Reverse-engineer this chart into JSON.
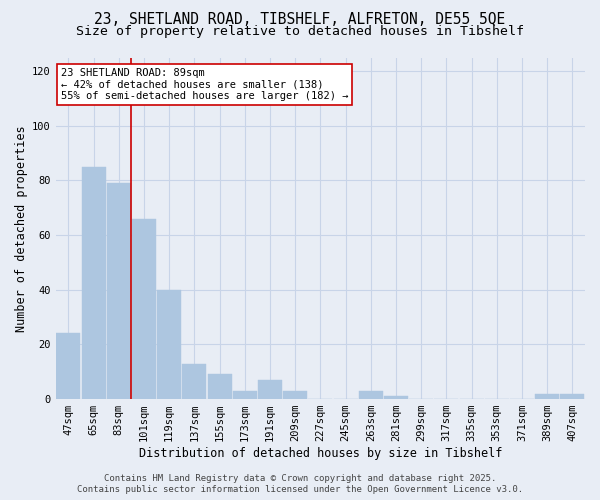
{
  "title_line1": "23, SHETLAND ROAD, TIBSHELF, ALFRETON, DE55 5QE",
  "title_line2": "Size of property relative to detached houses in Tibshelf",
  "xlabel": "Distribution of detached houses by size in Tibshelf",
  "ylabel": "Number of detached properties",
  "categories": [
    "47sqm",
    "65sqm",
    "83sqm",
    "101sqm",
    "119sqm",
    "137sqm",
    "155sqm",
    "173sqm",
    "191sqm",
    "209sqm",
    "227sqm",
    "245sqm",
    "263sqm",
    "281sqm",
    "299sqm",
    "317sqm",
    "335sqm",
    "353sqm",
    "371sqm",
    "389sqm",
    "407sqm"
  ],
  "values": [
    24,
    85,
    79,
    66,
    40,
    13,
    9,
    3,
    7,
    3,
    0,
    0,
    3,
    1,
    0,
    0,
    0,
    0,
    0,
    2,
    2
  ],
  "bar_color": "#adc6e0",
  "bar_edge_color": "#adc6e0",
  "grid_color": "#c8d4e8",
  "background_color": "#e8edf5",
  "vline_color": "#cc0000",
  "annotation_text": "23 SHETLAND ROAD: 89sqm\n← 42% of detached houses are smaller (138)\n55% of semi-detached houses are larger (182) →",
  "annotation_box_facecolor": "#ffffff",
  "annotation_box_edgecolor": "#cc0000",
  "ylim_max": 125,
  "yticks": [
    0,
    20,
    40,
    60,
    80,
    100,
    120
  ],
  "footer_line1": "Contains HM Land Registry data © Crown copyright and database right 2025.",
  "footer_line2": "Contains public sector information licensed under the Open Government Licence v3.0.",
  "title_fontsize": 10.5,
  "subtitle_fontsize": 9.5,
  "axis_label_fontsize": 8.5,
  "tick_fontsize": 7.5,
  "annotation_fontsize": 7.5,
  "footer_fontsize": 6.5
}
